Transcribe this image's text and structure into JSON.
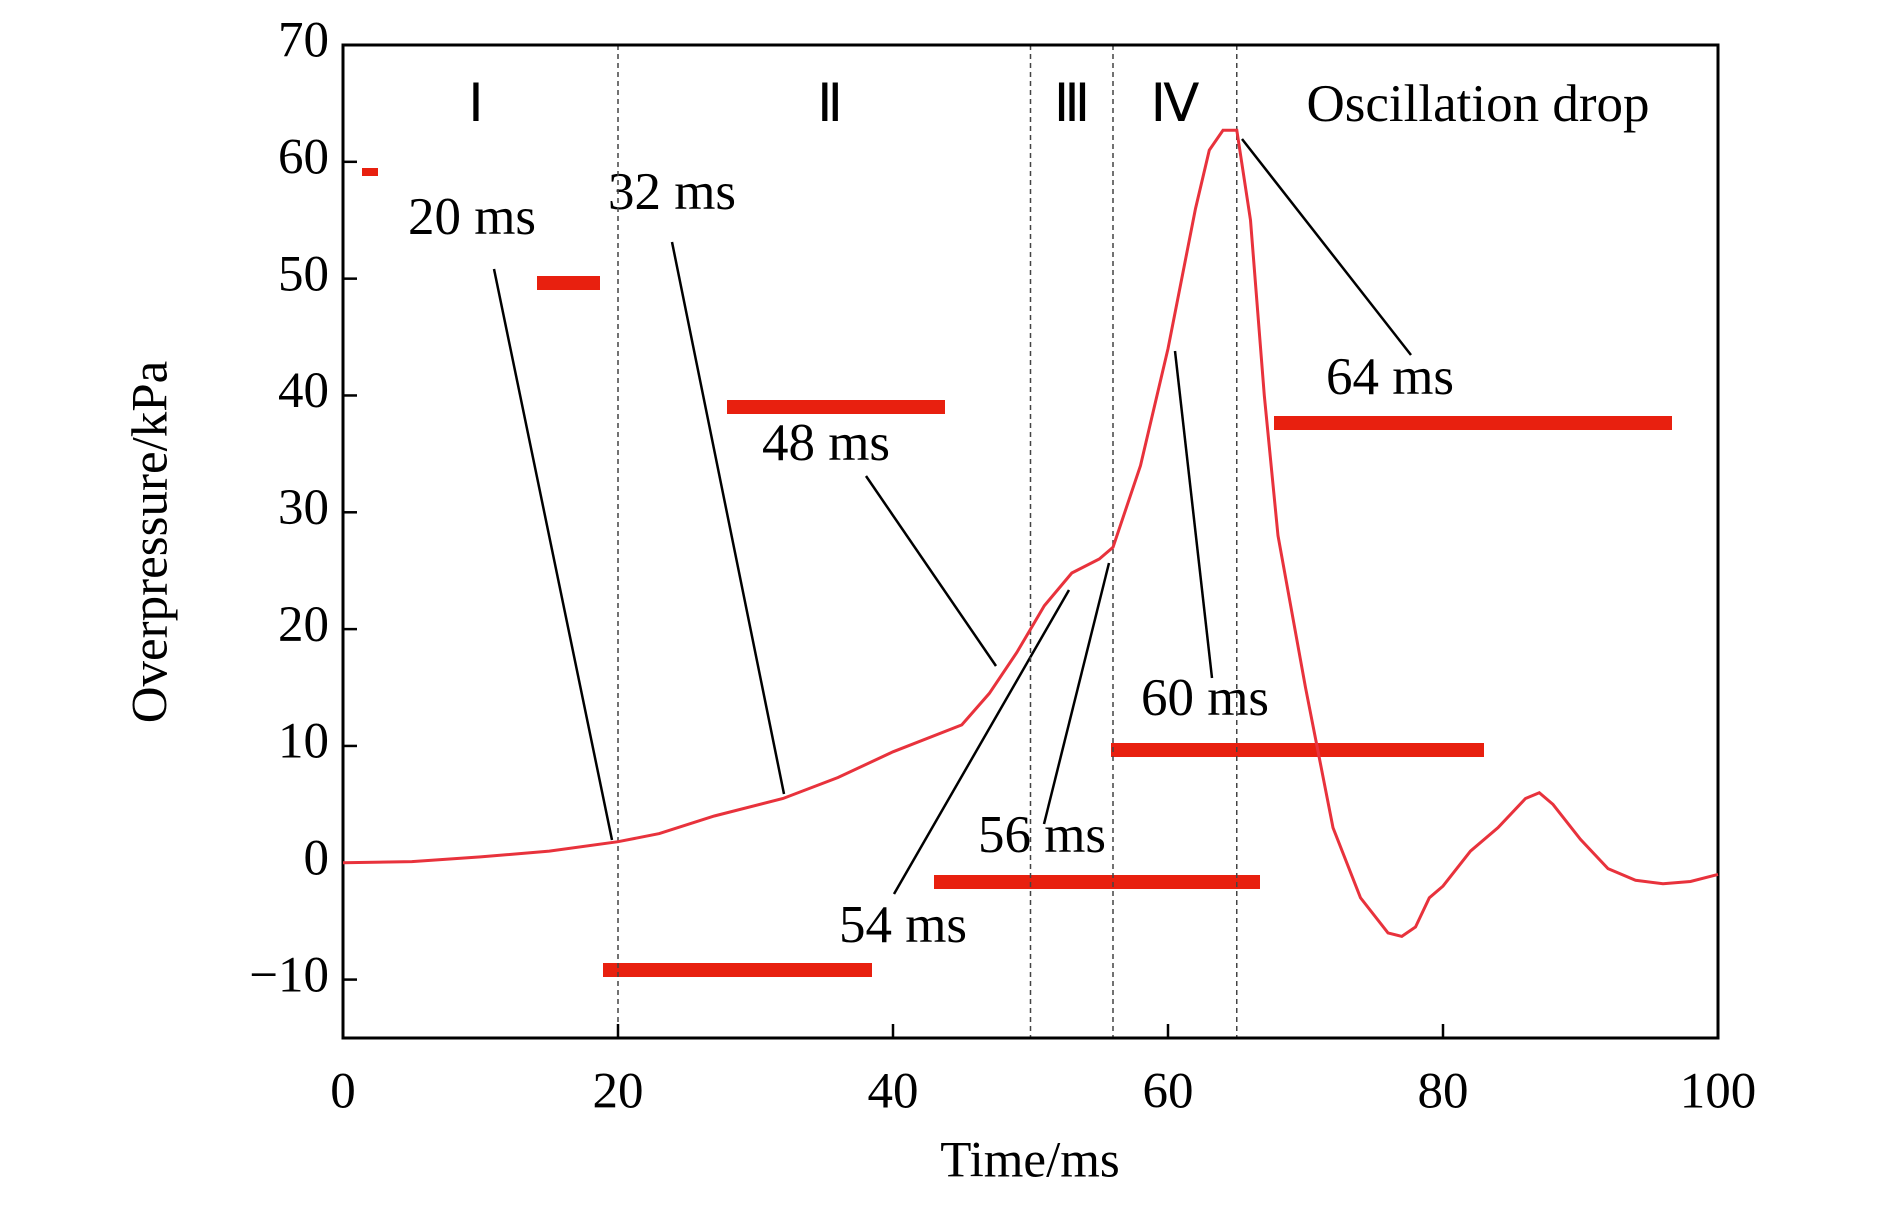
{
  "chart_data": {
    "type": "line",
    "xlabel": "Time/ms",
    "ylabel": "Overpressure/kPa",
    "xlim": [
      0,
      100
    ],
    "ylim": [
      -15,
      70
    ],
    "xticks": [
      0,
      20,
      40,
      60,
      80,
      100
    ],
    "yticks": [
      {
        "value": -10,
        "label": "−10"
      },
      0,
      10,
      20,
      30,
      40,
      50,
      60,
      70
    ],
    "phase_boundaries": [
      20,
      50,
      56,
      65
    ],
    "phase_labels": [
      "Ⅰ",
      "Ⅱ",
      "Ⅲ",
      "Ⅳ",
      "Oscillation drop"
    ],
    "annotations": [
      "20 ms",
      "32 ms",
      "48 ms",
      "54 ms",
      "56 ms",
      "60 ms",
      "64 ms"
    ],
    "series": [
      {
        "color": "#e8323c",
        "x": [
          0,
          5,
          10,
          15,
          20,
          23,
          27,
          32,
          36,
          40,
          45,
          47,
          49,
          51,
          53,
          55,
          56,
          58,
          60,
          62,
          63,
          64,
          64.5,
          65,
          66,
          67,
          68,
          70,
          72,
          74,
          76,
          77,
          78,
          79,
          80,
          82,
          84,
          86,
          87,
          88,
          90,
          92,
          94,
          96,
          98,
          100
        ],
        "values": [
          0,
          0.1,
          0.5,
          1,
          1.8,
          2.5,
          4,
          5.5,
          7.3,
          9.5,
          11.8,
          14.5,
          18,
          22,
          24.8,
          26,
          27,
          34,
          44,
          56,
          61,
          62.7,
          62.7,
          62.7,
          55,
          40,
          28,
          15,
          3,
          -3,
          -6,
          -6.3,
          -5.5,
          -3,
          -2,
          1,
          3,
          5.5,
          6,
          5,
          2,
          -0.5,
          -1.5,
          -1.8,
          -1.6,
          -1
        ]
      }
    ]
  }
}
